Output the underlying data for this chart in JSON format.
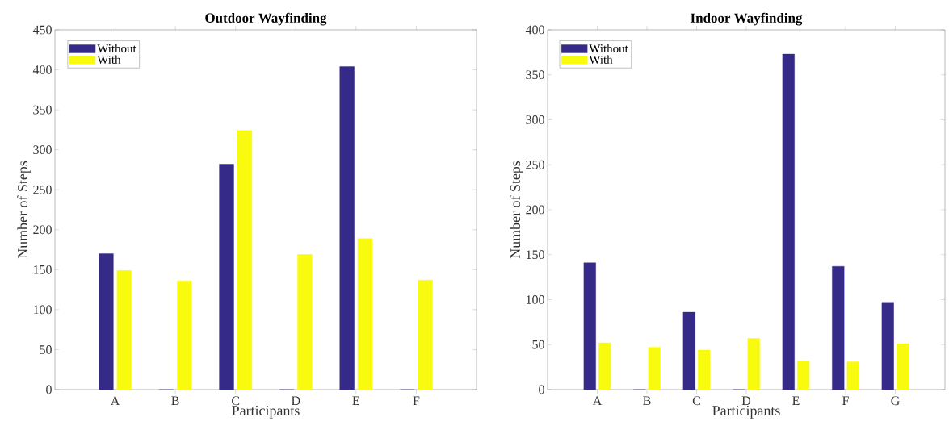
{
  "chart_data": [
    {
      "type": "bar",
      "title": "Outdoor Wayfinding",
      "xlabel": "Participants",
      "ylabel": "Number of Steps",
      "categories": [
        "A",
        "B",
        "C",
        "D",
        "E",
        "F"
      ],
      "series": [
        {
          "name": "Without",
          "color": "#352a87",
          "values": [
            170,
            0,
            282,
            0,
            404,
            0
          ]
        },
        {
          "name": "With",
          "color": "#f9fb0e",
          "values": [
            149,
            136,
            324,
            169,
            189,
            137
          ]
        }
      ],
      "ylim": [
        0,
        450
      ],
      "yticks": [
        0,
        50,
        100,
        150,
        200,
        250,
        300,
        350,
        400,
        450
      ],
      "legend": "top left"
    },
    {
      "type": "bar",
      "title": "Indoor Wayfinding",
      "xlabel": "Participants",
      "ylabel": "Number of Steps",
      "categories": [
        "A",
        "B",
        "C",
        "D",
        "E",
        "F",
        "G"
      ],
      "series": [
        {
          "name": "Without",
          "color": "#352a87",
          "values": [
            141,
            0,
            86,
            0,
            373,
            137,
            97
          ]
        },
        {
          "name": "With",
          "color": "#f9fb0e",
          "values": [
            52,
            47,
            44,
            57,
            32,
            31,
            51
          ]
        }
      ],
      "ylim": [
        0,
        400
      ],
      "yticks": [
        0,
        50,
        100,
        150,
        200,
        250,
        300,
        350,
        400
      ],
      "legend": "top left"
    }
  ]
}
